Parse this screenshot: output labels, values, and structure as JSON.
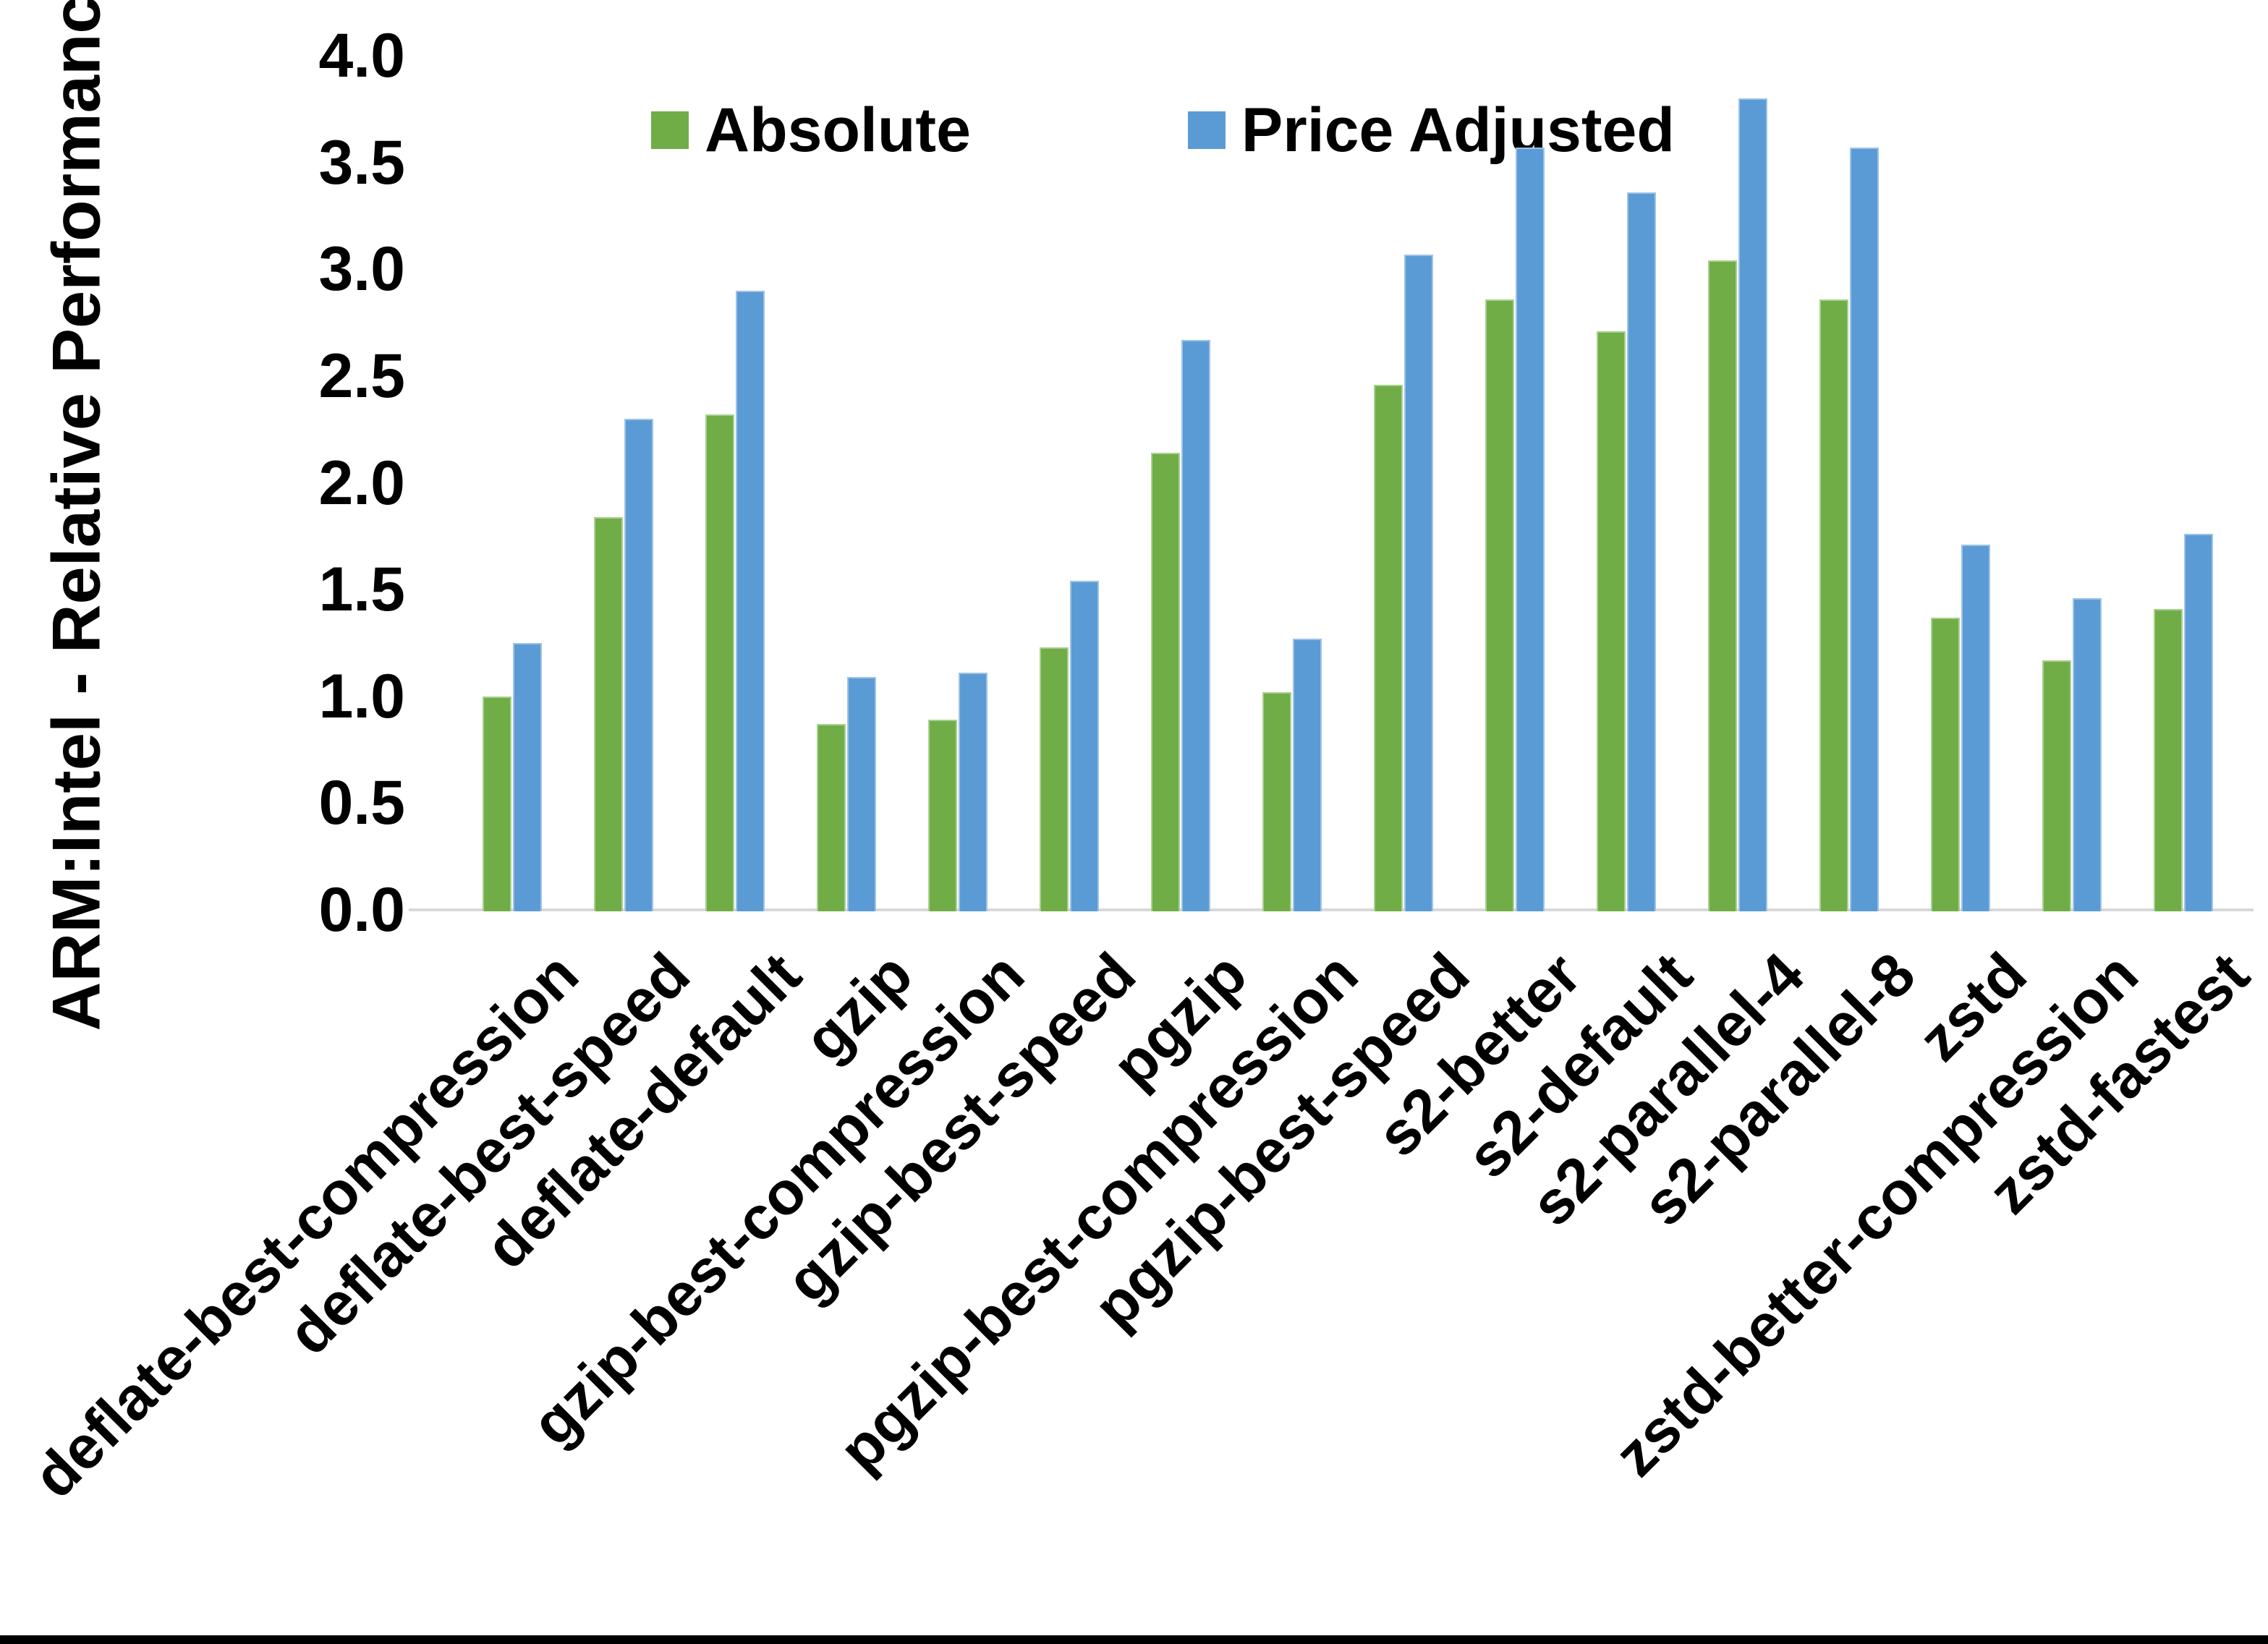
{
  "chart_data": {
    "type": "bar",
    "title": "",
    "xlabel": "",
    "ylabel": "ARM:Intel - Relative Performance",
    "ylim": [
      0.0,
      4.0
    ],
    "ytick_step": 0.5,
    "yticks": [
      "0.0",
      "0.5",
      "1.0",
      "1.5",
      "2.0",
      "2.5",
      "3.0",
      "3.5",
      "4.0"
    ],
    "grid": false,
    "legend_position": "top-center",
    "axis_color": "#d9d9d9",
    "categories": [
      "deflate-best-compression",
      "deflate-best-speed",
      "deflate-default",
      "gzip",
      "gzip-best-compression",
      "gzip-best-speed",
      "pgzip",
      "pgzip-best-compression",
      "pgzip-best-speed",
      "s2-better",
      "s2-default",
      "s2-parallel-4",
      "s2-parallel-8",
      "zstd",
      "zstd-better-compression",
      "zstd-fastest"
    ],
    "series": [
      {
        "name": "Absolute",
        "color": "#70AD47",
        "values": [
          1.0,
          1.84,
          2.32,
          0.87,
          0.89,
          1.23,
          2.14,
          1.02,
          2.46,
          2.86,
          2.71,
          3.04,
          2.86,
          1.37,
          1.17,
          1.41
        ]
      },
      {
        "name": "Price Adjusted",
        "color": "#5B9BD5",
        "values": [
          1.25,
          2.3,
          2.9,
          1.09,
          1.11,
          1.54,
          2.67,
          1.27,
          3.07,
          3.57,
          3.36,
          3.8,
          3.57,
          1.71,
          1.46,
          1.76
        ]
      }
    ]
  }
}
